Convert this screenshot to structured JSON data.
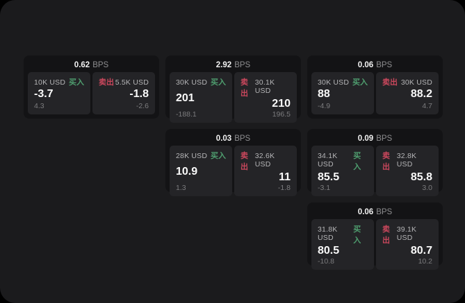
{
  "labels": {
    "bps": "BPS",
    "buy": "买入",
    "sell": "卖出"
  },
  "colors": {
    "page_bg": "#1b1b1d",
    "card_bg": "#131315",
    "panel_bg": "#242427",
    "buy": "#4f9e6f",
    "sell": "#c9475c"
  },
  "cards": [
    {
      "spread": "0.62",
      "buy_amount": "10K USD",
      "buy_price": "-3.7",
      "buy_sub": "4.3",
      "sell_amount": "5.5K USD",
      "sell_price": "-1.8",
      "sell_sub": "-2.6"
    },
    {
      "spread": "2.92",
      "buy_amount": "30K USD",
      "buy_price": "201",
      "buy_sub": "-188.1",
      "sell_amount": "30.1K USD",
      "sell_price": "210",
      "sell_sub": "196.5"
    },
    {
      "spread": "0.06",
      "buy_amount": "30K USD",
      "buy_price": "88",
      "buy_sub": "-4.9",
      "sell_amount": "30K USD",
      "sell_price": "88.2",
      "sell_sub": "4.7"
    },
    {
      "spread": "0.03",
      "buy_amount": "28K USD",
      "buy_price": "10.9",
      "buy_sub": "1.3",
      "sell_amount": "32.6K USD",
      "sell_price": "11",
      "sell_sub": "-1.8"
    },
    {
      "spread": "0.09",
      "buy_amount": "34.1K USD",
      "buy_price": "85.5",
      "buy_sub": "-3.1",
      "sell_amount": "32.8K USD",
      "sell_price": "85.8",
      "sell_sub": "3.0"
    },
    {
      "spread": "0.06",
      "buy_amount": "31.8K USD",
      "buy_price": "80.5",
      "buy_sub": "-10.8",
      "sell_amount": "39.1K USD",
      "sell_price": "80.7",
      "sell_sub": "10.2"
    }
  ]
}
